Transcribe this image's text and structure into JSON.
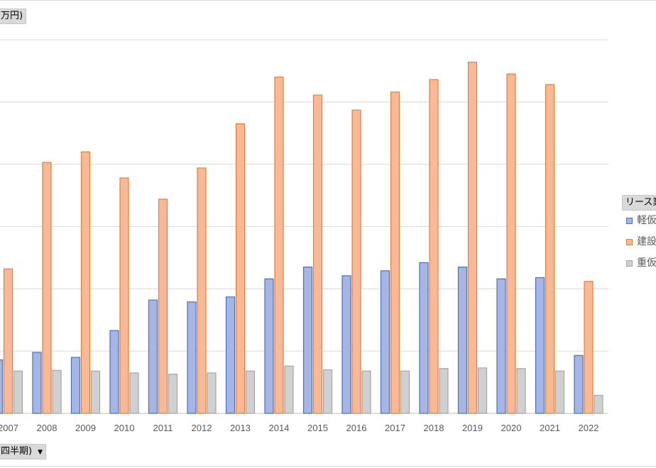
{
  "header": {
    "unit_label": "万円)"
  },
  "axis_field": {
    "label": "四半期)",
    "dropdown": "▼"
  },
  "legend": {
    "title": "リース業",
    "items": [
      {
        "name": "軽仮",
        "color": "#4472c4",
        "fill": "#a6b5e3"
      },
      {
        "name": "建設",
        "color": "#ed7d31",
        "fill": "#f7b998"
      },
      {
        "name": "重仮",
        "color": "#a5a5a5",
        "fill": "#d0d0d0"
      }
    ]
  },
  "chart_data": {
    "type": "bar",
    "categories": [
      "2007",
      "2008",
      "2009",
      "2010",
      "2011",
      "2012",
      "2013",
      "2014",
      "2015",
      "2016",
      "2017",
      "2018",
      "2019",
      "2020",
      "2021",
      "2022"
    ],
    "series": [
      {
        "name": "軽仮",
        "values": [
          0.86,
          0.98,
          0.9,
          1.33,
          1.82,
          1.79,
          1.87,
          2.16,
          2.35,
          2.21,
          2.29,
          2.42,
          2.35,
          2.16,
          2.18,
          0.93
        ]
      },
      {
        "name": "建設",
        "values": [
          2.32,
          4.03,
          4.2,
          3.78,
          3.44,
          3.94,
          4.65,
          5.4,
          5.11,
          4.87,
          5.16,
          5.36,
          5.64,
          5.45,
          5.28,
          2.12
        ]
      },
      {
        "name": "重仮",
        "values": [
          0.68,
          0.69,
          0.68,
          0.65,
          0.63,
          0.65,
          0.68,
          0.76,
          0.7,
          0.68,
          0.68,
          0.72,
          0.73,
          0.72,
          0.68,
          0.29
        ]
      }
    ],
    "ylim": [
      0,
      6
    ],
    "grid": true,
    "legend_position": "right"
  }
}
